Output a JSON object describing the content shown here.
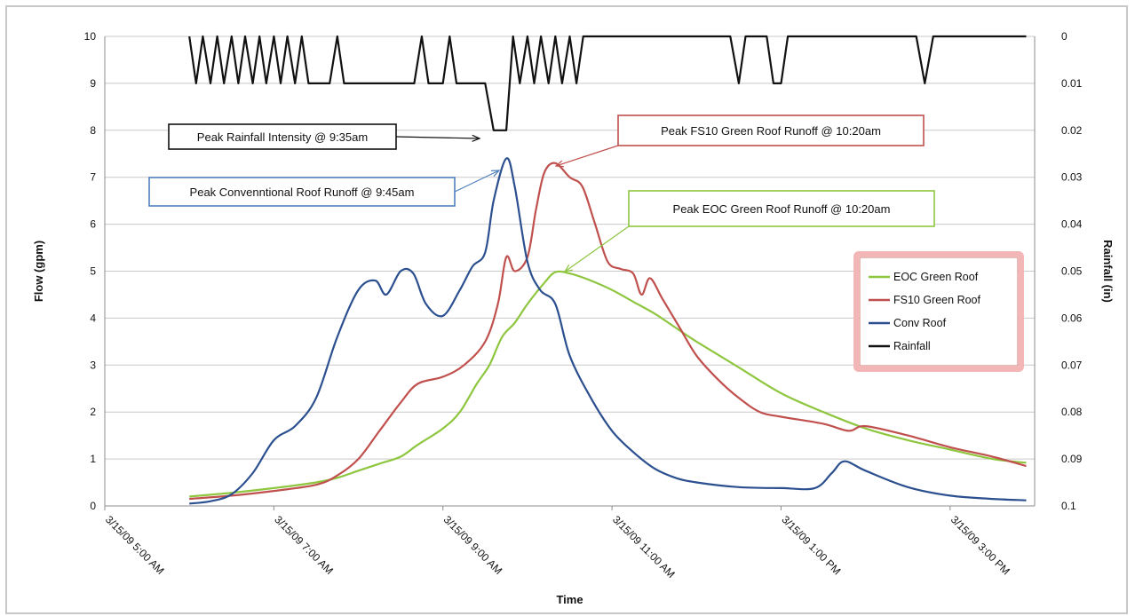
{
  "chart_data": {
    "type": "line",
    "x_axis": {
      "label": "Time",
      "ticks": [
        "3/15/09 5:00 AM",
        "3/15/09 7:00 AM",
        "3/15/09 9:00 AM",
        "3/15/09 11:00 AM",
        "3/15/09 1:00 PM",
        "3/15/09 3:00 PM"
      ],
      "range_hours": [
        5,
        16
      ]
    },
    "y_axis": {
      "label": "Flow (gpm)",
      "ticks": [
        "0",
        "1",
        "2",
        "3",
        "4",
        "5",
        "6",
        "7",
        "8",
        "9",
        "10"
      ],
      "range": [
        0,
        10
      ]
    },
    "y2_axis": {
      "label": "Rainfall (in)",
      "ticks": [
        "0",
        "0.01",
        "0.02",
        "0.03",
        "0.04",
        "0.05",
        "0.06",
        "0.07",
        "0.08",
        "0.09",
        "0.1"
      ],
      "range": [
        0,
        0.1
      ],
      "reversed": true
    },
    "grid": "horizontal",
    "legend_position": "right",
    "legend": [
      "EOC Green Roof",
      "FS10 Green Roof",
      "Conv Roof",
      "Rainfall"
    ],
    "series": [
      {
        "name": "EOC Green Roof",
        "color": "#8ec63f",
        "axis": "left",
        "points": [
          [
            6.0,
            0.2
          ],
          [
            6.5,
            0.28
          ],
          [
            7.0,
            0.38
          ],
          [
            7.5,
            0.5
          ],
          [
            7.75,
            0.6
          ],
          [
            8.0,
            0.75
          ],
          [
            8.25,
            0.9
          ],
          [
            8.5,
            1.05
          ],
          [
            8.7,
            1.3
          ],
          [
            9.0,
            1.65
          ],
          [
            9.2,
            2.0
          ],
          [
            9.4,
            2.6
          ],
          [
            9.55,
            3.0
          ],
          [
            9.7,
            3.6
          ],
          [
            9.85,
            3.9
          ],
          [
            10.0,
            4.3
          ],
          [
            10.2,
            4.75
          ],
          [
            10.33,
            4.98
          ],
          [
            10.5,
            4.95
          ],
          [
            10.75,
            4.8
          ],
          [
            11.0,
            4.6
          ],
          [
            11.25,
            4.35
          ],
          [
            11.5,
            4.1
          ],
          [
            11.75,
            3.8
          ],
          [
            12.0,
            3.5
          ],
          [
            12.5,
            2.95
          ],
          [
            13.0,
            2.4
          ],
          [
            13.5,
            2.0
          ],
          [
            14.0,
            1.65
          ],
          [
            14.5,
            1.4
          ],
          [
            15.0,
            1.2
          ],
          [
            15.5,
            1.0
          ],
          [
            15.9,
            0.92
          ]
        ]
      },
      {
        "name": "FS10 Green Roof",
        "color": "#c0504d",
        "axis": "left",
        "points": [
          [
            6.0,
            0.15
          ],
          [
            6.5,
            0.22
          ],
          [
            7.0,
            0.32
          ],
          [
            7.5,
            0.45
          ],
          [
            7.75,
            0.65
          ],
          [
            8.0,
            1.0
          ],
          [
            8.25,
            1.6
          ],
          [
            8.5,
            2.2
          ],
          [
            8.7,
            2.6
          ],
          [
            9.0,
            2.75
          ],
          [
            9.25,
            3.0
          ],
          [
            9.5,
            3.5
          ],
          [
            9.65,
            4.3
          ],
          [
            9.75,
            5.3
          ],
          [
            9.85,
            5.0
          ],
          [
            10.0,
            5.3
          ],
          [
            10.1,
            6.3
          ],
          [
            10.2,
            7.1
          ],
          [
            10.33,
            7.3
          ],
          [
            10.5,
            7.0
          ],
          [
            10.65,
            6.8
          ],
          [
            10.8,
            6.0
          ],
          [
            10.95,
            5.2
          ],
          [
            11.1,
            5.05
          ],
          [
            11.25,
            4.95
          ],
          [
            11.35,
            4.5
          ],
          [
            11.45,
            4.85
          ],
          [
            11.6,
            4.4
          ],
          [
            11.8,
            3.8
          ],
          [
            12.0,
            3.2
          ],
          [
            12.25,
            2.7
          ],
          [
            12.5,
            2.3
          ],
          [
            12.75,
            2.0
          ],
          [
            13.0,
            1.9
          ],
          [
            13.5,
            1.75
          ],
          [
            13.8,
            1.6
          ],
          [
            14.0,
            1.7
          ],
          [
            14.5,
            1.5
          ],
          [
            15.0,
            1.25
          ],
          [
            15.5,
            1.05
          ],
          [
            15.9,
            0.85
          ]
        ]
      },
      {
        "name": "Conv Roof",
        "color": "#2b4f8f",
        "axis": "left",
        "points": [
          [
            6.0,
            0.05
          ],
          [
            6.25,
            0.1
          ],
          [
            6.5,
            0.25
          ],
          [
            6.75,
            0.7
          ],
          [
            7.0,
            1.4
          ],
          [
            7.25,
            1.7
          ],
          [
            7.5,
            2.3
          ],
          [
            7.75,
            3.6
          ],
          [
            8.0,
            4.6
          ],
          [
            8.2,
            4.8
          ],
          [
            8.33,
            4.5
          ],
          [
            8.5,
            5.0
          ],
          [
            8.65,
            4.95
          ],
          [
            8.8,
            4.3
          ],
          [
            9.0,
            4.05
          ],
          [
            9.2,
            4.6
          ],
          [
            9.35,
            5.1
          ],
          [
            9.5,
            5.4
          ],
          [
            9.6,
            6.5
          ],
          [
            9.75,
            7.4
          ],
          [
            9.85,
            6.8
          ],
          [
            10.0,
            5.2
          ],
          [
            10.15,
            4.6
          ],
          [
            10.33,
            4.3
          ],
          [
            10.5,
            3.2
          ],
          [
            10.75,
            2.3
          ],
          [
            11.0,
            1.6
          ],
          [
            11.25,
            1.15
          ],
          [
            11.5,
            0.8
          ],
          [
            11.75,
            0.6
          ],
          [
            12.0,
            0.5
          ],
          [
            12.5,
            0.4
          ],
          [
            13.0,
            0.38
          ],
          [
            13.4,
            0.38
          ],
          [
            13.6,
            0.7
          ],
          [
            13.75,
            0.95
          ],
          [
            14.0,
            0.75
          ],
          [
            14.5,
            0.4
          ],
          [
            15.0,
            0.22
          ],
          [
            15.5,
            0.15
          ],
          [
            15.9,
            0.12
          ]
        ]
      },
      {
        "name": "Rainfall",
        "color": "#111111",
        "axis": "right",
        "points": [
          [
            6.0,
            0
          ],
          [
            6.08,
            0.01
          ],
          [
            6.16,
            0
          ],
          [
            6.25,
            0.01
          ],
          [
            6.33,
            0
          ],
          [
            6.41,
            0.01
          ],
          [
            6.5,
            0
          ],
          [
            6.58,
            0.01
          ],
          [
            6.66,
            0
          ],
          [
            6.75,
            0.01
          ],
          [
            6.83,
            0
          ],
          [
            6.91,
            0.01
          ],
          [
            7.0,
            0
          ],
          [
            7.08,
            0.01
          ],
          [
            7.16,
            0
          ],
          [
            7.25,
            0.01
          ],
          [
            7.33,
            0
          ],
          [
            7.41,
            0.01
          ],
          [
            7.5,
            0.01
          ],
          [
            7.66,
            0.01
          ],
          [
            7.75,
            0
          ],
          [
            7.83,
            0.01
          ],
          [
            8.5,
            0.01
          ],
          [
            8.66,
            0.01
          ],
          [
            8.75,
            0
          ],
          [
            8.83,
            0.01
          ],
          [
            9.0,
            0.01
          ],
          [
            9.08,
            0
          ],
          [
            9.16,
            0.01
          ],
          [
            9.5,
            0.01
          ],
          [
            9.6,
            0.02
          ],
          [
            9.75,
            0.02
          ],
          [
            9.83,
            0
          ],
          [
            9.91,
            0.01
          ],
          [
            10.0,
            0
          ],
          [
            10.08,
            0.01
          ],
          [
            10.16,
            0
          ],
          [
            10.25,
            0.01
          ],
          [
            10.33,
            0
          ],
          [
            10.41,
            0.01
          ],
          [
            10.5,
            0
          ],
          [
            10.58,
            0.01
          ],
          [
            10.66,
            0
          ],
          [
            12.4,
            0
          ],
          [
            12.5,
            0.01
          ],
          [
            12.58,
            0
          ],
          [
            12.83,
            0
          ],
          [
            12.91,
            0.01
          ],
          [
            13.0,
            0.01
          ],
          [
            13.08,
            0
          ],
          [
            14.6,
            0
          ],
          [
            14.7,
            0.01
          ],
          [
            14.8,
            0
          ],
          [
            15.9,
            0
          ]
        ]
      }
    ],
    "annotations": [
      {
        "text": "Peak Rainfall Intensity @ 9:35am",
        "border": "#111111",
        "target_hours": 9.58,
        "target_axis": "right",
        "target_value": 0.02
      },
      {
        "text": "Peak FS10 Green Roof Runoff @ 10:20am",
        "border": "#c0504d",
        "target_hours": 10.33,
        "target_axis": "left",
        "target_value": 7.3
      },
      {
        "text": "Peak Convenntional Roof Runoff @ 9:45am",
        "border": "#4f81bd",
        "target_hours": 9.75,
        "target_axis": "left",
        "target_value": 7.4
      },
      {
        "text": "Peak EOC Green Roof Runoff @ 10:20am",
        "border": "#8ec63f",
        "target_hours": 10.33,
        "target_axis": "left",
        "target_value": 4.98
      }
    ]
  }
}
